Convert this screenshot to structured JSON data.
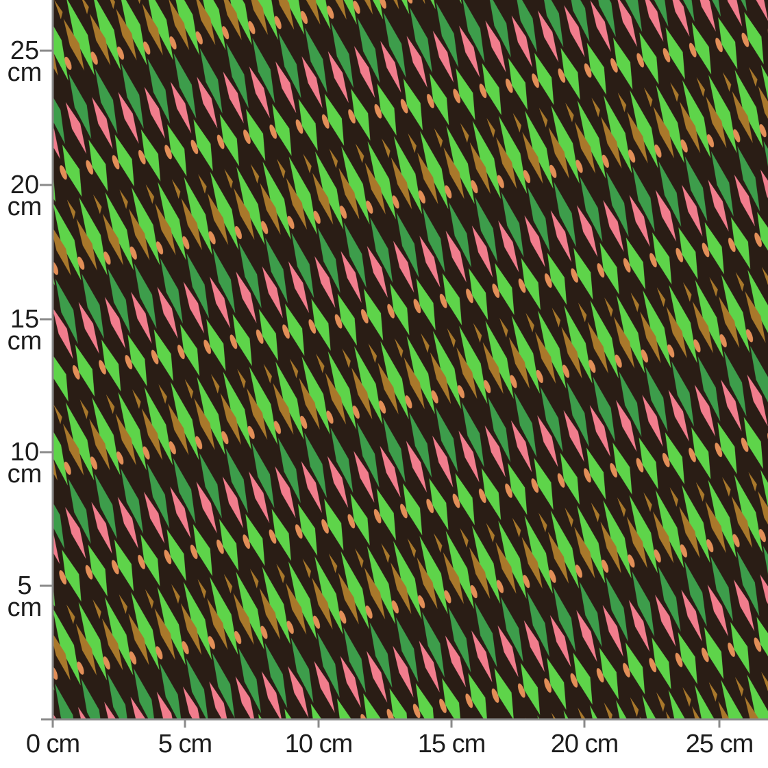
{
  "x_ruler": {
    "labels": [
      "0 cm",
      "5 cm",
      "10 cm",
      "15 cm",
      "20 cm",
      "25 cm"
    ]
  },
  "y_ruler": {
    "labels": [
      "25 cm",
      "20 cm",
      "15 cm",
      "10 cm",
      "5 cm"
    ]
  }
}
